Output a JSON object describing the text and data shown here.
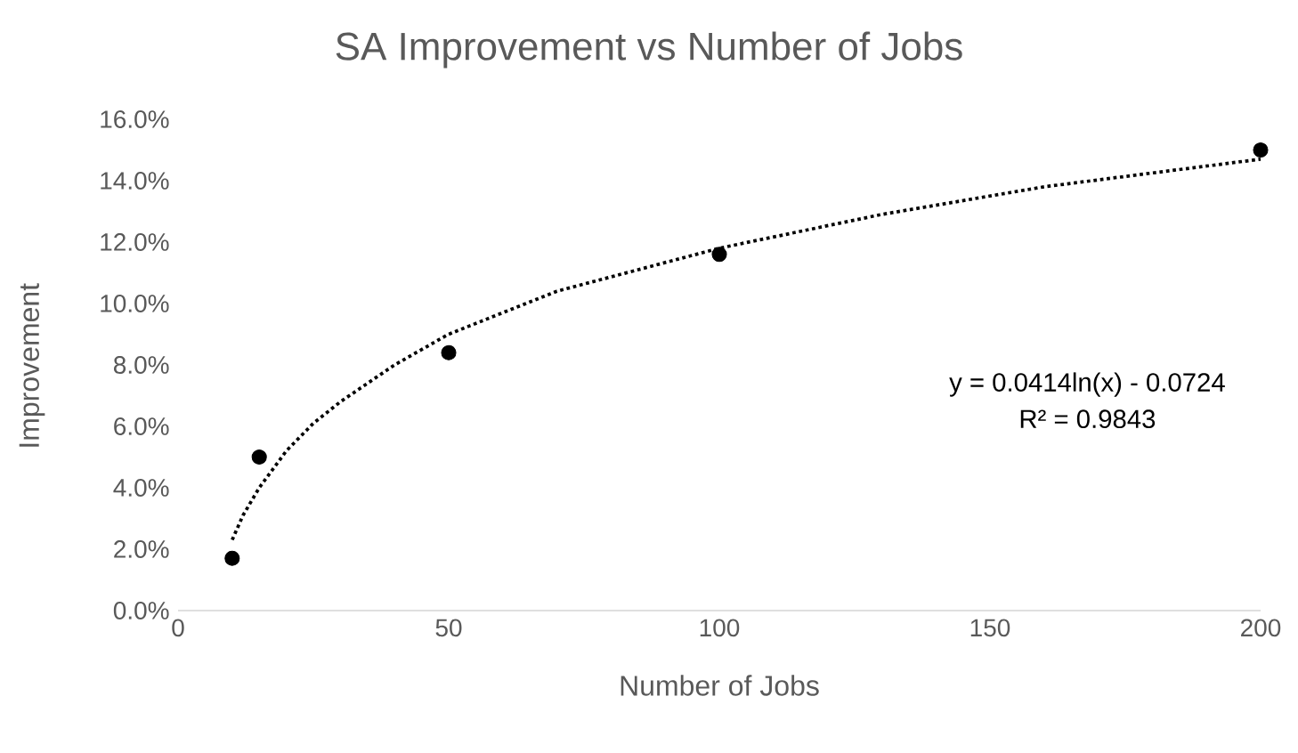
{
  "chart_data": {
    "type": "scatter",
    "title": "SA Improvement vs Number of Jobs",
    "xlabel": "Number of Jobs",
    "ylabel": "Improvement",
    "xlim": [
      0,
      200
    ],
    "xticks": [
      0,
      50,
      100,
      150,
      200
    ],
    "ylim": [
      0,
      16
    ],
    "yticks": [
      {
        "value": 0,
        "label": "0.0%"
      },
      {
        "value": 2,
        "label": "2.0%"
      },
      {
        "value": 4,
        "label": "4.0%"
      },
      {
        "value": 6,
        "label": "6.0%"
      },
      {
        "value": 8,
        "label": "8.0%"
      },
      {
        "value": 10,
        "label": "10.0%"
      },
      {
        "value": 12,
        "label": "12.0%"
      },
      {
        "value": 14,
        "label": "14.0%"
      },
      {
        "value": 16,
        "label": "16.0%"
      }
    ],
    "annotations": [
      "y = 0.0414ln(x) - 0.0724",
      "R² = 0.9843"
    ],
    "series": [
      {
        "color": "#000000",
        "marker": "circle",
        "x": [
          10,
          15,
          50,
          100,
          200
        ],
        "values": [
          1.7,
          5.0,
          8.4,
          11.6,
          15.0
        ]
      },
      {
        "type": "line",
        "color": "#000000",
        "line_style": "dotted",
        "marker": "none",
        "x": [
          10,
          12,
          15,
          20,
          25,
          30,
          40,
          50,
          70,
          100,
          130,
          160,
          200
        ],
        "values": [
          2.3,
          3.1,
          4.0,
          5.2,
          6.1,
          6.8,
          8.0,
          9.0,
          10.4,
          11.8,
          12.9,
          13.8,
          14.7
        ]
      }
    ]
  }
}
